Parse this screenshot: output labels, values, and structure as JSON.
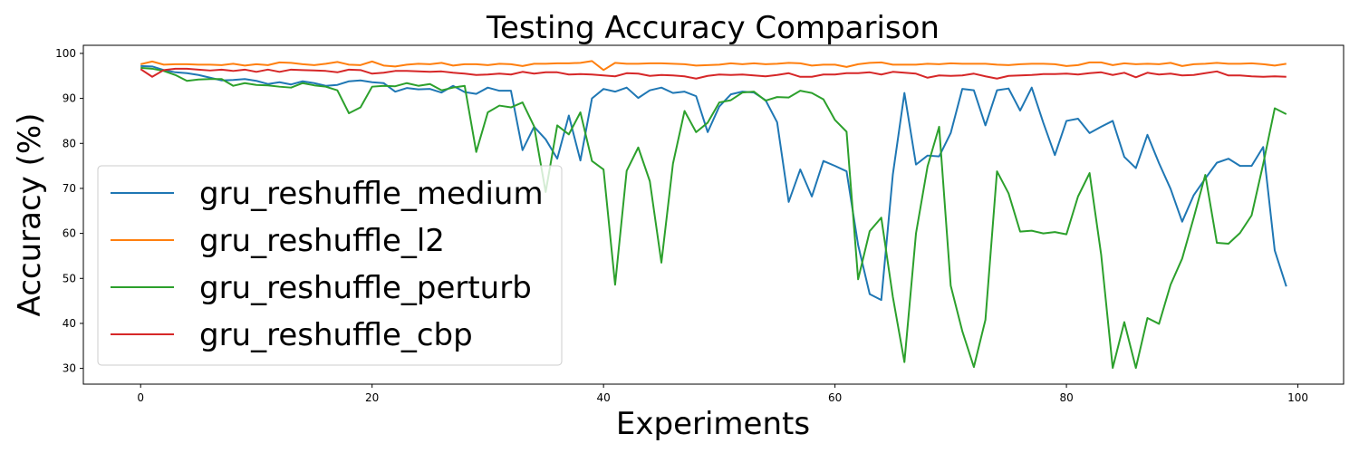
{
  "chart_data": {
    "type": "line",
    "title": "Testing Accuracy Comparison",
    "xlabel": "Experiments",
    "ylabel": "Accuracy (%)",
    "xlim": [
      -4.95,
      103.95
    ],
    "ylim": [
      26.5,
      101.8
    ],
    "xticks": [
      0,
      20,
      40,
      60,
      80,
      100
    ],
    "yticks": [
      30,
      40,
      50,
      60,
      70,
      80,
      90,
      100
    ],
    "grid": false,
    "legend_position": "lower-left",
    "x": [
      0,
      1,
      2,
      3,
      4,
      5,
      6,
      7,
      8,
      9,
      10,
      11,
      12,
      13,
      14,
      15,
      16,
      17,
      18,
      19,
      20,
      21,
      22,
      23,
      24,
      25,
      26,
      27,
      28,
      29,
      30,
      31,
      32,
      33,
      34,
      35,
      36,
      37,
      38,
      39,
      40,
      41,
      42,
      43,
      44,
      45,
      46,
      47,
      48,
      49,
      50,
      51,
      52,
      53,
      54,
      55,
      56,
      57,
      58,
      59,
      60,
      61,
      62,
      63,
      64,
      65,
      66,
      67,
      68,
      69,
      70,
      71,
      72,
      73,
      74,
      75,
      76,
      77,
      78,
      79,
      80,
      81,
      82,
      83,
      84,
      85,
      86,
      87,
      88,
      89,
      90,
      91,
      92,
      93,
      94,
      95,
      96,
      97,
      98,
      99
    ],
    "series": [
      {
        "name": "gru_reshuffle_medium",
        "color": "#1f77b4",
        "values": [
          97.2,
          97.1,
          96.3,
          95.8,
          95.6,
          95.2,
          94.6,
          94.0,
          94.1,
          94.3,
          93.9,
          93.2,
          93.6,
          93.1,
          93.8,
          93.4,
          92.8,
          93.0,
          93.8,
          94.0,
          93.6,
          93.4,
          91.5,
          92.3,
          92.0,
          92.1,
          91.3,
          92.8,
          91.4,
          91.0,
          92.4,
          91.7,
          91.7,
          78.5,
          83.7,
          80.9,
          76.6,
          86.2,
          76.2,
          90.0,
          92.1,
          91.5,
          92.4,
          90.1,
          91.8,
          92.4,
          91.2,
          91.5,
          90.5,
          82.5,
          88.2,
          90.9,
          91.5,
          91.3,
          89.6,
          84.7,
          67.0,
          74.2,
          68.2,
          76.1,
          75.0,
          73.8,
          57.4,
          46.5,
          45.2,
          73.1,
          91.2,
          75.3,
          77.3,
          77.1,
          82.3,
          92.1,
          91.8,
          84.0,
          91.8,
          92.2,
          87.3,
          92.4,
          84.6,
          77.4,
          85.0,
          85.5,
          82.3,
          83.7,
          85.0,
          77.0,
          74.5,
          81.9,
          75.6,
          69.9,
          62.6,
          68.5,
          72.2,
          75.7,
          76.6,
          75.0,
          75.0,
          79.2,
          56.2,
          48.2
        ]
      },
      {
        "name": "gru_reshuffle_l2",
        "color": "#ff7f0e",
        "values": [
          97.6,
          98.2,
          97.5,
          97.6,
          97.6,
          97.5,
          97.5,
          97.4,
          97.7,
          97.3,
          97.6,
          97.4,
          98.0,
          97.9,
          97.6,
          97.4,
          97.7,
          98.1,
          97.5,
          97.4,
          98.2,
          97.3,
          97.1,
          97.5,
          97.7,
          97.6,
          97.9,
          97.3,
          97.6,
          97.6,
          97.4,
          97.7,
          97.6,
          97.2,
          97.7,
          97.7,
          97.8,
          97.8,
          97.9,
          98.3,
          96.3,
          97.9,
          97.7,
          97.7,
          97.8,
          97.8,
          97.7,
          97.6,
          97.3,
          97.4,
          97.5,
          97.8,
          97.6,
          97.8,
          97.6,
          97.7,
          97.9,
          97.8,
          97.3,
          97.5,
          97.5,
          97.0,
          97.6,
          97.9,
          98.0,
          97.5,
          97.5,
          97.5,
          97.7,
          97.6,
          97.8,
          97.7,
          97.7,
          97.7,
          97.5,
          97.4,
          97.6,
          97.7,
          97.7,
          97.6,
          97.2,
          97.4,
          98.0,
          98.0,
          97.4,
          97.8,
          97.6,
          97.7,
          97.6,
          97.9,
          97.2,
          97.6,
          97.7,
          97.9,
          97.7,
          97.7,
          97.8,
          97.6,
          97.3,
          97.7
        ]
      },
      {
        "name": "gru_reshuffle_perturb",
        "color": "#2ca02c",
        "values": [
          96.8,
          96.6,
          96.1,
          95.2,
          93.9,
          94.2,
          94.3,
          94.3,
          92.8,
          93.4,
          93.0,
          92.9,
          92.6,
          92.4,
          93.4,
          92.9,
          92.6,
          91.8,
          86.7,
          88.0,
          92.6,
          92.8,
          92.7,
          93.4,
          92.8,
          93.2,
          91.8,
          92.4,
          92.8,
          78.1,
          86.9,
          88.4,
          88.0,
          89.1,
          83.8,
          69.2,
          84.0,
          82.0,
          86.9,
          76.1,
          74.2,
          48.6,
          73.9,
          79.1,
          71.6,
          53.5,
          75.5,
          87.2,
          82.5,
          84.6,
          89.1,
          89.6,
          91.3,
          91.5,
          89.5,
          90.3,
          90.2,
          91.7,
          91.2,
          89.8,
          85.2,
          82.6,
          49.8,
          60.5,
          63.5,
          45.9,
          31.4,
          60.0,
          74.9,
          83.7,
          48.4,
          38.3,
          30.3,
          40.8,
          73.8,
          68.9,
          60.4,
          60.6,
          60.0,
          60.3,
          59.8,
          68.2,
          73.4,
          55.3,
          30.1,
          40.3,
          30.1,
          41.2,
          39.9,
          48.6,
          54.4,
          63.5,
          73.0,
          57.9,
          57.7,
          60.1,
          64.0,
          75.4,
          87.8,
          86.5
        ]
      },
      {
        "name": "gru_reshuffle_cbp",
        "color": "#d62728",
        "values": [
          96.5,
          94.8,
          96.3,
          96.6,
          96.6,
          96.4,
          96.2,
          96.4,
          96.1,
          96.4,
          95.9,
          96.4,
          95.9,
          96.4,
          96.3,
          96.2,
          96.1,
          95.8,
          96.4,
          96.3,
          95.5,
          95.7,
          96.1,
          96.1,
          96.0,
          95.9,
          96.0,
          95.7,
          95.5,
          95.2,
          95.3,
          95.5,
          95.3,
          95.9,
          95.5,
          95.8,
          95.8,
          95.3,
          95.4,
          95.3,
          95.1,
          94.9,
          95.6,
          95.5,
          95.0,
          95.2,
          95.1,
          94.9,
          94.4,
          95.0,
          95.3,
          95.2,
          95.3,
          95.1,
          94.9,
          95.2,
          95.6,
          94.8,
          94.8,
          95.3,
          95.3,
          95.6,
          95.6,
          95.8,
          95.3,
          95.9,
          95.7,
          95.5,
          94.6,
          95.1,
          95.0,
          95.1,
          95.5,
          94.9,
          94.4,
          95.0,
          95.1,
          95.2,
          95.4,
          95.4,
          95.5,
          95.3,
          95.6,
          95.8,
          95.2,
          95.7,
          94.7,
          95.7,
          95.3,
          95.5,
          95.1,
          95.2,
          95.6,
          96.0,
          95.1,
          95.1,
          94.9,
          94.8,
          94.9,
          94.8
        ]
      }
    ]
  }
}
